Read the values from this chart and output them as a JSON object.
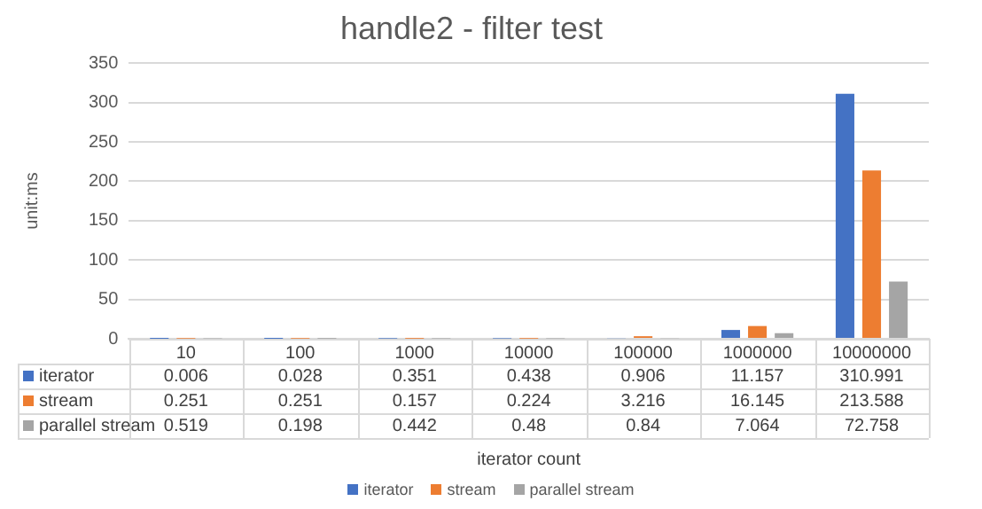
{
  "chart_data": {
    "type": "bar",
    "title": "handle2 - filter test",
    "xlabel": "iterator count",
    "ylabel": "unit:ms",
    "categories": [
      "10",
      "100",
      "1000",
      "10000",
      "100000",
      "1000000",
      "10000000"
    ],
    "series": [
      {
        "name": "iterator",
        "color": "#4472c4",
        "values": [
          0.006,
          0.028,
          0.351,
          0.438,
          0.906,
          11.157,
          310.991
        ]
      },
      {
        "name": "stream",
        "color": "#ed7d31",
        "values": [
          0.251,
          0.251,
          0.157,
          0.224,
          3.216,
          16.145,
          213.588
        ]
      },
      {
        "name": "parallel stream",
        "color": "#a5a5a5",
        "values": [
          0.519,
          0.198,
          0.442,
          0.48,
          0.84,
          7.064,
          72.758
        ]
      }
    ],
    "ylim": [
      0,
      350
    ],
    "yticks": [
      0,
      50,
      100,
      150,
      200,
      250,
      300,
      350
    ],
    "grid": "y",
    "legend": "bottom",
    "data_labels": true
  }
}
